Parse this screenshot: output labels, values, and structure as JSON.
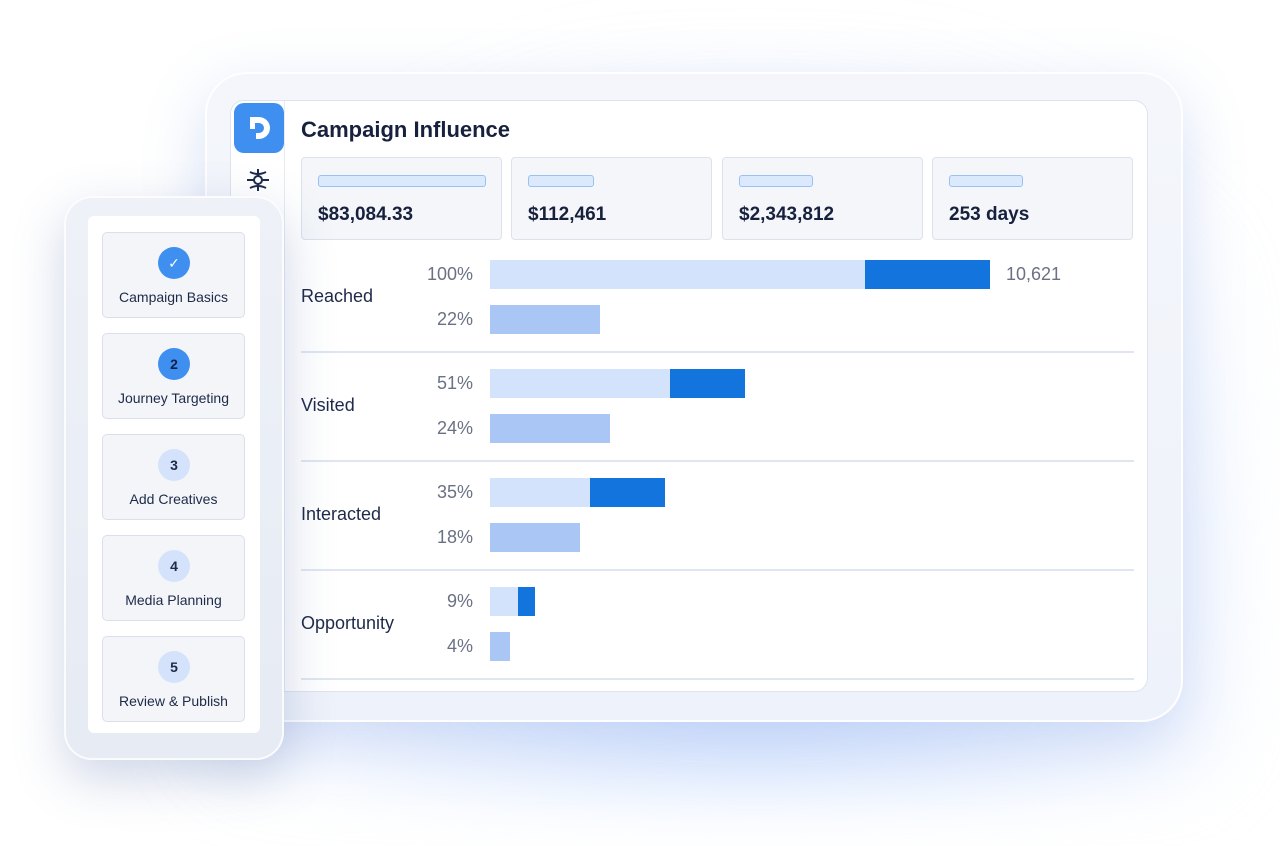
{
  "app": {
    "title": "Campaign Influence"
  },
  "icons": {
    "logo": "d-logo-icon",
    "nav": "network-icon",
    "check": "check-icon"
  },
  "colors": {
    "accent": "#3f8ff0",
    "bar_light": "#d2e3fb",
    "bar_dark": "#1474de",
    "bar_secondary": "#aac6f5"
  },
  "kpis": [
    {
      "value": "$83,084.33"
    },
    {
      "value": "$112,461"
    },
    {
      "value": "$2,343,812"
    },
    {
      "value": "253 days"
    }
  ],
  "funnel": [
    {
      "label": "Reached",
      "primary_pct": "100%",
      "primary_value": 100,
      "primary_highlight": 25,
      "secondary_pct": "22%",
      "secondary_value": 22,
      "count": "10,621"
    },
    {
      "label": "Visited",
      "primary_pct": "51%",
      "primary_value": 51,
      "primary_highlight": 15,
      "secondary_pct": "24%",
      "secondary_value": 24
    },
    {
      "label": "Interacted",
      "primary_pct": "35%",
      "primary_value": 35,
      "primary_highlight": 15,
      "secondary_pct": "18%",
      "secondary_value": 18
    },
    {
      "label": "Opportunity",
      "primary_pct": "9%",
      "primary_value": 9,
      "primary_highlight": 3.5,
      "secondary_pct": "4%",
      "secondary_value": 4
    }
  ],
  "steps": [
    {
      "number": "✓",
      "label": "Campaign Basics",
      "state": "done"
    },
    {
      "number": "2",
      "label": "Journey Targeting",
      "state": "active"
    },
    {
      "number": "3",
      "label": "Add Creatives",
      "state": "todo"
    },
    {
      "number": "4",
      "label": "Media Planning",
      "state": "todo"
    },
    {
      "number": "5",
      "label": "Review & Publish",
      "state": "todo"
    }
  ]
}
